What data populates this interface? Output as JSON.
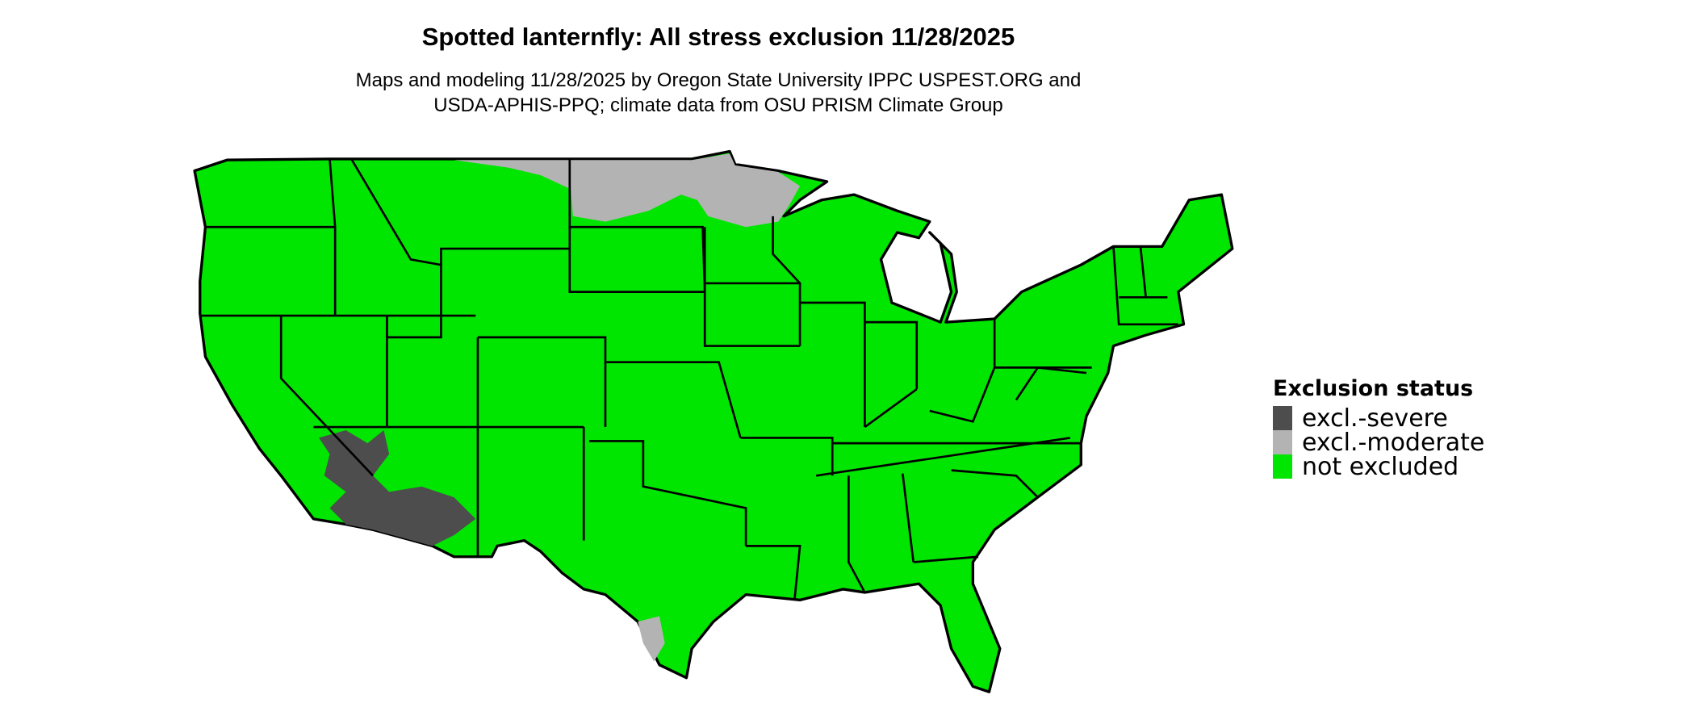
{
  "title": "Spotted lanternfly: All stress exclusion 11/28/2025",
  "subtitle_line1": "Maps and modeling 11/28/2025 by Oregon State University IPPC USPEST.ORG and",
  "subtitle_line2": "USDA-APHIS-PPQ; climate data from OSU PRISM Climate Group",
  "legend": {
    "title": "Exclusion status",
    "items": [
      {
        "label": "excl.-severe",
        "color": "#4d4d4d"
      },
      {
        "label": "excl.-moderate",
        "color": "#b3b3b3"
      },
      {
        "label": "not excluded",
        "color": "#00e600"
      }
    ]
  },
  "colors": {
    "not_excluded": "#00e600",
    "moderate": "#b3b3b3",
    "severe": "#4d4d4d",
    "borders": "#000000"
  }
}
